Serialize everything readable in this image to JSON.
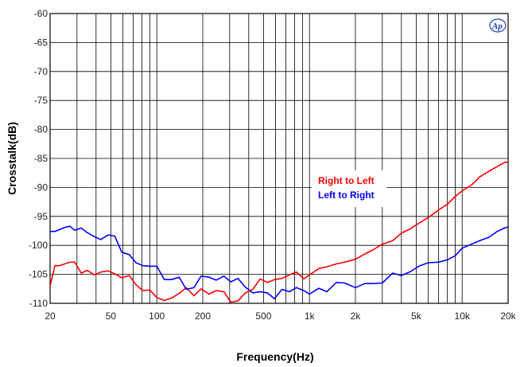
{
  "chart_data": {
    "type": "line",
    "xlabel": "Frequency(Hz)",
    "ylabel": "Crosstalk(dB)",
    "xscale": "log",
    "xlim": [
      20,
      20000
    ],
    "ylim": [
      -110,
      -60
    ],
    "grid": true,
    "legend_position": "center-right",
    "x_ticks": [
      {
        "value": 20,
        "label": "20"
      },
      {
        "value": 50,
        "label": "50"
      },
      {
        "value": 100,
        "label": "100"
      },
      {
        "value": 200,
        "label": "200"
      },
      {
        "value": 500,
        "label": "500"
      },
      {
        "value": 1000,
        "label": "1k"
      },
      {
        "value": 2000,
        "label": "2k"
      },
      {
        "value": 5000,
        "label": "5k"
      },
      {
        "value": 10000,
        "label": "10k"
      },
      {
        "value": 20000,
        "label": "20k"
      }
    ],
    "y_ticks": [
      {
        "value": -60,
        "label": "-60"
      },
      {
        "value": -65,
        "label": "-65"
      },
      {
        "value": -70,
        "label": "-70"
      },
      {
        "value": -75,
        "label": "-75"
      },
      {
        "value": -80,
        "label": "-80"
      },
      {
        "value": -85,
        "label": "-85"
      },
      {
        "value": -90,
        "label": "-90"
      },
      {
        "value": -95,
        "label": "-95"
      },
      {
        "value": -100,
        "label": "-100"
      },
      {
        "value": -105,
        "label": "-105"
      },
      {
        "value": -110,
        "label": "-110"
      }
    ],
    "series": [
      {
        "name": "Right to Left",
        "color": "#ff0000",
        "x": [
          20,
          21.5,
          23,
          25,
          27,
          29,
          32,
          35,
          39,
          43,
          48,
          53,
          59,
          66,
          73,
          81,
          90,
          100,
          112,
          125,
          140,
          156,
          175,
          195,
          220,
          245,
          275,
          305,
          340,
          380,
          425,
          475,
          530,
          590,
          660,
          740,
          820,
          920,
          1000,
          1150,
          1300,
          1500,
          1700,
          2000,
          2300,
          2600,
          3000,
          3500,
          4000,
          4600,
          5200,
          6000,
          7000,
          8000,
          9000,
          10000,
          11500,
          13000,
          15000,
          17000,
          19000,
          20000
        ],
        "y": [
          -107,
          -103.5,
          -103.5,
          -103.2,
          -102.9,
          -102.9,
          -104.8,
          -104.3,
          -105.1,
          -104.6,
          -104.4,
          -104.9,
          -105.6,
          -105.2,
          -106.8,
          -107.8,
          -107.7,
          -109.0,
          -109.5,
          -109.1,
          -108.3,
          -107.3,
          -108.7,
          -107.5,
          -108.4,
          -107.8,
          -108.0,
          -109.8,
          -109.6,
          -108.2,
          -107.6,
          -105.8,
          -106.4,
          -105.9,
          -105.7,
          -105.1,
          -104.6,
          -105.8,
          -105.1,
          -104.0,
          -103.7,
          -103.2,
          -102.9,
          -102.4,
          -101.5,
          -100.8,
          -99.8,
          -99.2,
          -97.9,
          -97.1,
          -96.2,
          -95.2,
          -93.9,
          -92.9,
          -91.6,
          -90.6,
          -89.6,
          -88.2,
          -87.2,
          -86.4,
          -85.7,
          -85.6
        ]
      },
      {
        "name": "Left to Right",
        "color": "#0000ff",
        "x": [
          20,
          21.5,
          23,
          25,
          27,
          29,
          32,
          35,
          39,
          43,
          48,
          53,
          59,
          66,
          73,
          81,
          90,
          100,
          112,
          125,
          140,
          156,
          175,
          195,
          220,
          245,
          275,
          305,
          340,
          380,
          425,
          475,
          530,
          590,
          660,
          740,
          820,
          920,
          1000,
          1150,
          1300,
          1500,
          1700,
          2000,
          2300,
          2600,
          3000,
          3500,
          4000,
          4600,
          5200,
          6000,
          7000,
          8000,
          9000,
          10000,
          11500,
          13000,
          15000,
          17000,
          19000,
          20000
        ],
        "y": [
          -97.6,
          -97.6,
          -97.3,
          -96.9,
          -96.7,
          -97.4,
          -97.0,
          -97.8,
          -98.5,
          -99.0,
          -98.2,
          -98.4,
          -101.2,
          -101.6,
          -103.0,
          -103.5,
          -103.6,
          -103.6,
          -105.9,
          -105.9,
          -105.5,
          -107.6,
          -107.3,
          -105.3,
          -105.5,
          -106.0,
          -105.3,
          -106.3,
          -105.7,
          -107.2,
          -108.2,
          -108.0,
          -108.2,
          -109.2,
          -107.6,
          -108.0,
          -107.3,
          -107.8,
          -108.4,
          -107.4,
          -108.0,
          -106.4,
          -106.5,
          -107.3,
          -106.6,
          -106.6,
          -106.5,
          -104.8,
          -105.2,
          -104.5,
          -103.6,
          -103.0,
          -102.9,
          -102.5,
          -101.8,
          -100.5,
          -99.8,
          -99.2,
          -98.6,
          -97.6,
          -97.0,
          -96.8
        ]
      }
    ]
  },
  "logo": "Ap"
}
